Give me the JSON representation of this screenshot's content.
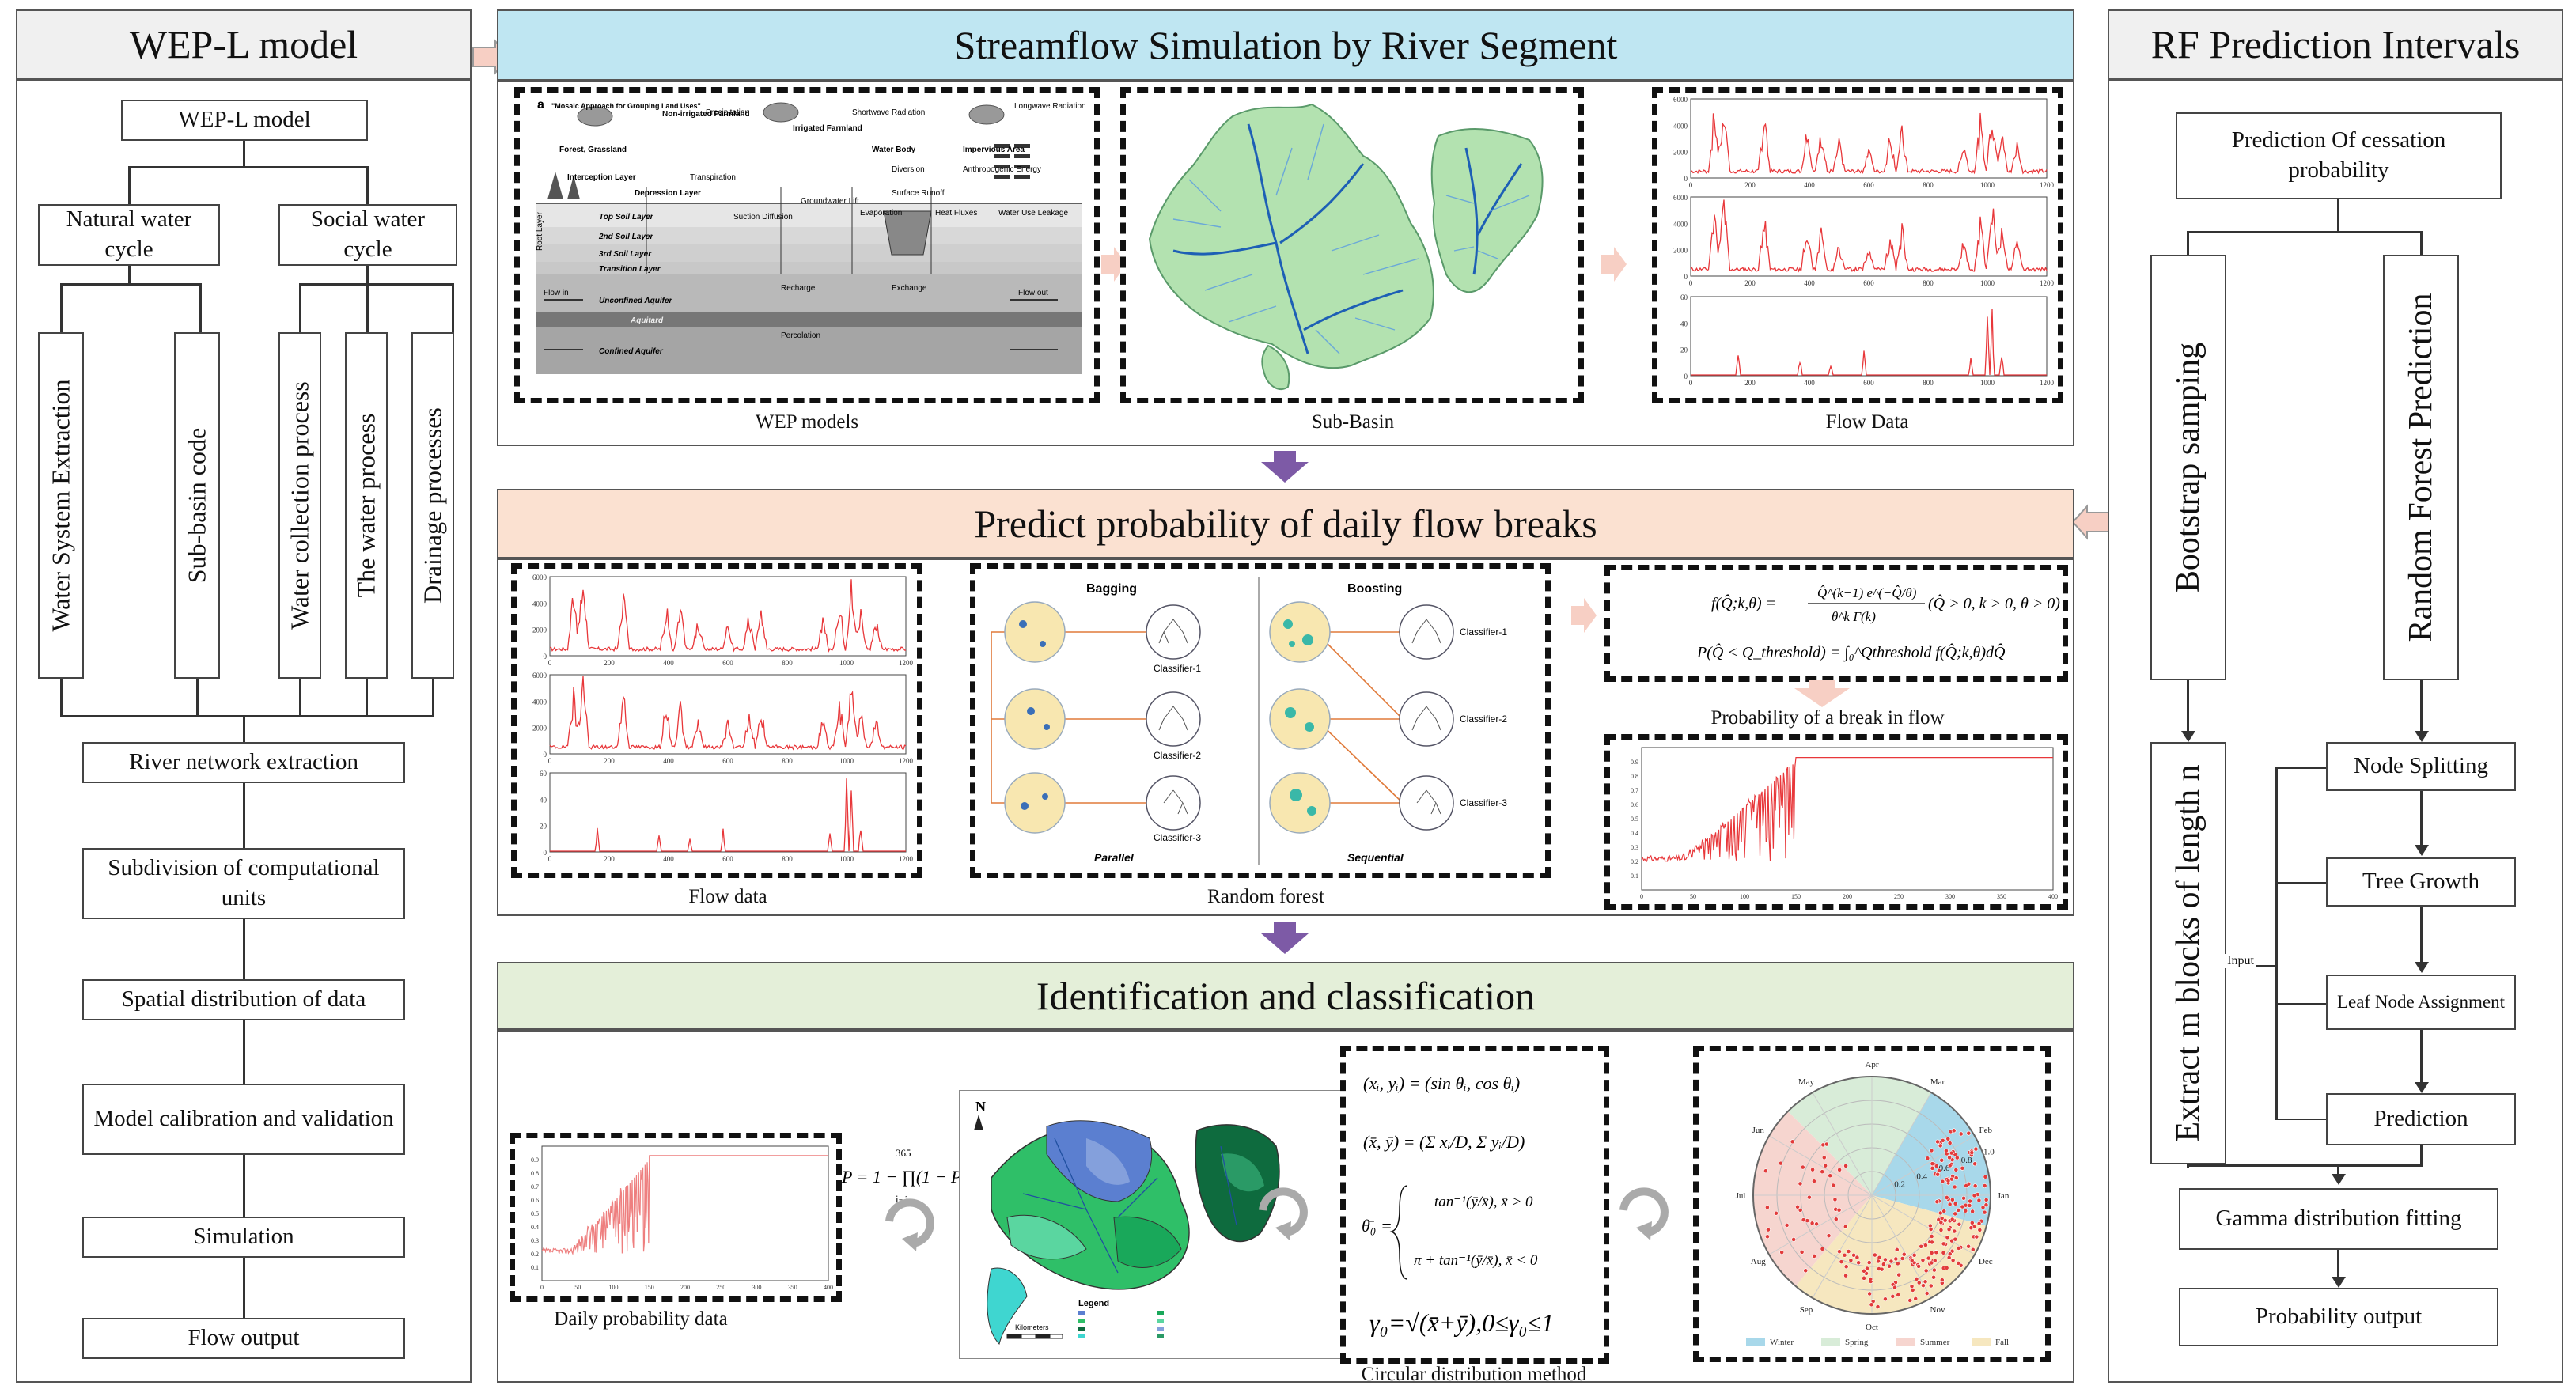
{
  "left": {
    "title": "WEP-L model",
    "root": "WEP-L model",
    "natural": "Natural water cycle",
    "social": "Social water cycle",
    "vertical": [
      "Water System Extraction",
      "Sub-basin code",
      "Water collection process",
      "The water process",
      "Drainage processes"
    ],
    "steps": [
      "River network extraction",
      "Subdivision of computational units",
      "Spatial distribution of data",
      "Model calibration and validation",
      "Simulation",
      "Flow output"
    ]
  },
  "top": {
    "title": "Streamflow Simulation by River Segment",
    "captions": [
      "WEP models",
      "Sub-Basin",
      "Flow Data"
    ],
    "wep": {
      "labels": [
        "\"Mosaic Approach for Grouping Land Uses\"",
        "Forest, Grassland",
        "Non-irrigated Farmland",
        "Irrigated Farmland",
        "Water Body",
        "Impervious Area",
        "Precipitation",
        "Shortwave Radiation",
        "Longwave Radiation",
        "Interception Layer",
        "Depression Layer",
        "Transpiration",
        "Top Soil Layer",
        "2nd Soil Layer",
        "3rd Soil Layer",
        "Transition Layer",
        "Unconfined Aquifer",
        "Aquitard",
        "Confined Aquifer",
        "Flow in",
        "Flow out",
        "Recharge",
        "Exchange",
        "Percolation",
        "Groundwater Lift",
        "Diversion",
        "Surface Runoff",
        "Evaporation",
        "Heat Fluxes",
        "Water Use Leakage",
        "Anthropogenic Energy",
        "Suction Diffusion",
        "Root Layer",
        "a"
      ]
    }
  },
  "middle": {
    "title": "Predict probability of daily flow breaks",
    "captions": [
      "Flow data",
      "Random forest",
      "Probability of a break in flow"
    ],
    "rf": {
      "bagging": "Bagging",
      "boosting": "Boosting",
      "parallel": "Parallel",
      "sequential": "Sequential",
      "classifiers": [
        "Classifier-1",
        "Classifier-2",
        "Classifier-3"
      ]
    }
  },
  "bottom": {
    "title": "Identification and classification",
    "captions": [
      "Daily probability data",
      "Circular distribution method"
    ],
    "map": {
      "legend": "Legend",
      "north": "N",
      "km": "Kilometers"
    },
    "polar": {
      "months": [
        "Apr",
        "Mar",
        "Feb",
        "Jan",
        "Dec",
        "Nov",
        "Oct",
        "Sep",
        "Aug",
        "Jul",
        "Jun",
        "May"
      ],
      "radii": [
        "0.2",
        "0.4",
        "0.6",
        "0.8",
        "1.0"
      ],
      "legend": [
        "Winter",
        "Spring",
        "Summer",
        "Fall"
      ]
    }
  },
  "right": {
    "title": "RF Prediction Intervals",
    "top": "Prediction Of cessation probability",
    "bootstrap": "Bootstrap samping",
    "rfp": "Random Forest Prediction",
    "extract": "Extract m blocks of length n",
    "node": "Node Splitting",
    "tree": "Tree Growth",
    "leaf": "Leaf Node Assignment",
    "prediction": "Prediction",
    "input": "Input",
    "gamma": "Gamma distribution fitting",
    "output": "Probability output"
  },
  "axes": {
    "flow_x": [
      "0",
      "200",
      "400",
      "600",
      "800",
      "1000",
      "1200"
    ],
    "flow_y1": [
      "0",
      "2000",
      "4000",
      "6000"
    ],
    "flow_y3": [
      "0",
      "20",
      "40",
      "60"
    ],
    "prob_x": [
      "0",
      "50",
      "100",
      "150",
      "200",
      "250",
      "300",
      "350",
      "400"
    ],
    "prob_y": [
      "0.1",
      "0.2",
      "0.3",
      "0.4",
      "0.5",
      "0.6",
      "0.7",
      "0.8",
      "0.9"
    ]
  },
  "colors": {
    "top_header": "#bfe6f2",
    "mid_header": "#fbe1d1",
    "bot_header": "#e4efd9",
    "side_header": "#f0f0f0",
    "flow_red": "#e8373a",
    "arrow_purple": "#7d5aa6",
    "arrow_pink": "#f7cfc4",
    "river_blue": "#1d5fb5",
    "basin_green": "#b3e2b0",
    "winter": "#a8d8ea",
    "spring": "#d8ecd8",
    "summer": "#f6d5cf",
    "fall": "#f6e7bf"
  }
}
